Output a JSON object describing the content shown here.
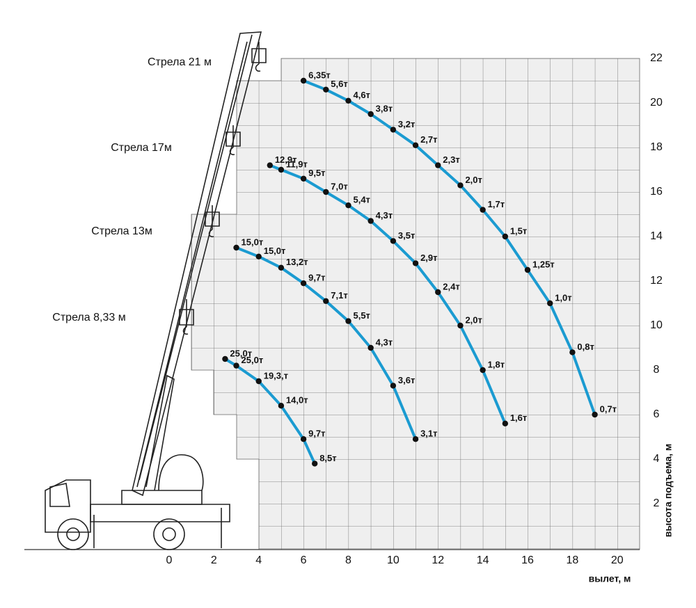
{
  "chart_data": {
    "type": "line",
    "x_label": "вылет, м",
    "y_label": "высота подъема, м",
    "xlim": [
      -7.5,
      21
    ],
    "ylim": [
      0,
      22
    ],
    "xticks": [
      0,
      2,
      4,
      6,
      8,
      10,
      12,
      14,
      16,
      18,
      20
    ],
    "yticks": [
      2,
      4,
      6,
      8,
      10,
      12,
      14,
      16,
      18,
      20,
      22
    ],
    "color": "#1b9bd1",
    "series": [
      {
        "name": "Стрела 21 м",
        "x": [
          6,
          7,
          8,
          9,
          10,
          11,
          12,
          13,
          14,
          15,
          16,
          17,
          18,
          19
        ],
        "values": [
          21,
          20.6,
          20.1,
          19.5,
          18.8,
          18.1,
          17.2,
          16.3,
          15.2,
          14.0,
          12.5,
          11.0,
          8.8,
          6.0
        ],
        "loads": [
          6.35,
          5.6,
          4.6,
          3.8,
          3.2,
          2.7,
          2.3,
          2.0,
          1.7,
          1.5,
          1.25,
          1.0,
          0.8,
          0.7
        ],
        "load_labels": [
          "6,35т",
          "5,6т",
          "4,6т",
          "3,8т",
          "3,2т",
          "2,7т",
          "2,3т",
          "2,0т",
          "1,7т",
          "1,5т",
          "1,25т",
          "1,0т",
          "0,8т",
          "0,7т"
        ]
      },
      {
        "name": "Стрела 17м",
        "x": [
          4.5,
          5,
          6,
          7,
          8,
          9,
          10,
          11,
          12,
          13,
          14,
          15
        ],
        "values": [
          17.2,
          17.0,
          16.6,
          16.0,
          15.4,
          14.7,
          13.8,
          12.8,
          11.5,
          10.0,
          8.0,
          5.6
        ],
        "loads": [
          12.9,
          11.9,
          9.5,
          7.0,
          5.4,
          4.3,
          3.5,
          2.9,
          2.4,
          2.0,
          1.8,
          1.6
        ],
        "load_labels": [
          "12,9т",
          "11,9т",
          "9,5т",
          "7,0т",
          "5,4т",
          "4,3т",
          "3,5т",
          "2,9т",
          "2,4т",
          "2,0т",
          "1,8т",
          "1,6т"
        ]
      },
      {
        "name": "Стрела 13м",
        "x": [
          3,
          4,
          5,
          6,
          7,
          8,
          9,
          10,
          11
        ],
        "values": [
          13.5,
          13.1,
          12.6,
          11.9,
          11.1,
          10.2,
          9.0,
          7.3,
          4.9
        ],
        "loads": [
          15.0,
          15.0,
          13.2,
          9.7,
          7.1,
          5.5,
          4.3,
          3.6,
          3.1
        ],
        "load_labels": [
          "15,0т",
          "15,0т",
          "13,2т",
          "9,7т",
          "7,1т",
          "5,5т",
          "4,3т",
          "3,6т",
          "3,1т"
        ]
      },
      {
        "name": "Стрела 8,33 м",
        "x": [
          2.5,
          3,
          4,
          5,
          6,
          6.5
        ],
        "values": [
          8.5,
          8.2,
          7.5,
          6.4,
          4.9,
          3.8
        ],
        "loads": [
          25.0,
          25.0,
          19.3,
          14.0,
          9.7,
          8.5
        ],
        "load_labels": [
          "25,0т",
          "25,0т",
          "19,3,т",
          "14,0т",
          "9,7т",
          "8,5т"
        ]
      }
    ]
  }
}
